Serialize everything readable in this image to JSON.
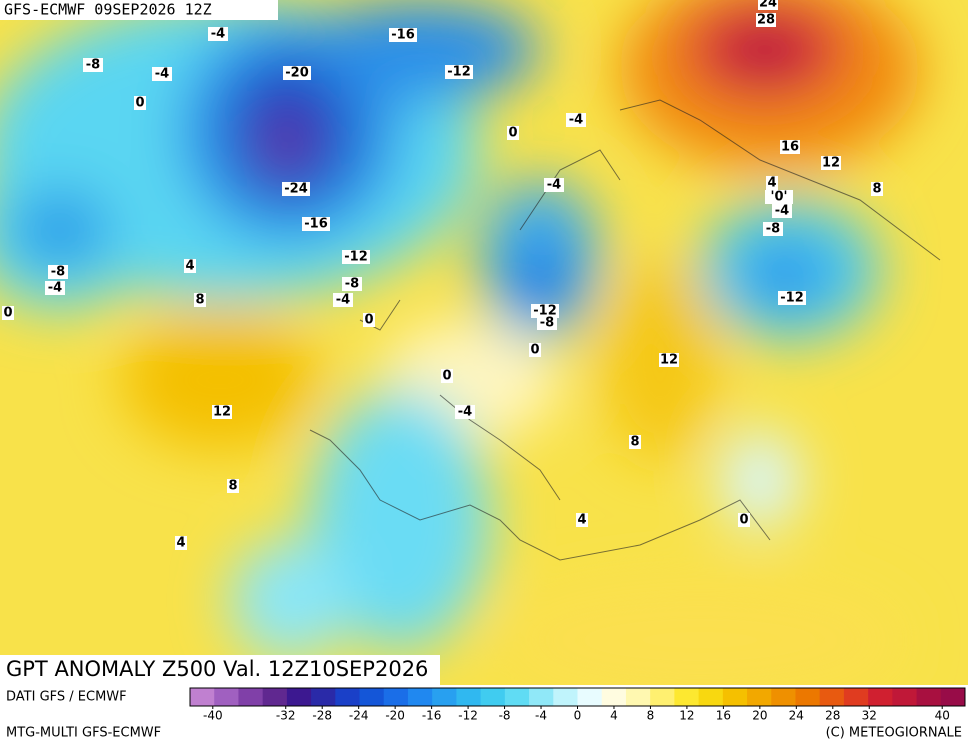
{
  "header": {
    "run": "GFS-ECMWF 09SEP2026 12Z"
  },
  "map": {
    "title": "GPT ANOMALY Z500 Val. 12Z10SEP2026",
    "contour_labels": [
      24,
      28,
      -4,
      -16,
      -8,
      -4,
      -20,
      -12,
      0,
      -4,
      0,
      16,
      12,
      -24,
      -4,
      4,
      8,
      "'0'",
      -4,
      -16,
      -8,
      -12,
      4,
      -8,
      -4,
      -8,
      -4,
      -12,
      8,
      0,
      0,
      -12,
      -8,
      0,
      12,
      0,
      -4,
      12,
      8,
      8,
      4,
      0,
      4
    ]
  },
  "footer": {
    "source": "DATI GFS / ECMWF",
    "model": "MTG-MULTI GFS-ECMWF",
    "copyright": "(C) METEOGIORNALE"
  },
  "colorbar": {
    "lim": [
      -42.5,
      42.5
    ],
    "ticks": [
      -40,
      -32,
      -28,
      -24,
      -20,
      -16,
      -12,
      -8,
      -4,
      0,
      4,
      8,
      12,
      16,
      20,
      24,
      28,
      32,
      40
    ],
    "colors": [
      "#c080d0",
      "#a060c0",
      "#8040a8",
      "#602890",
      "#3c1890",
      "#2a2aa8",
      "#1a40c8",
      "#1456d8",
      "#1a6ee8",
      "#2088f0",
      "#28a0f0",
      "#30b8f0",
      "#40ccf0",
      "#60dcf4",
      "#90e8f8",
      "#c0f4fc",
      "#e8fcff",
      "#fffce0",
      "#fff8b0",
      "#fff070",
      "#fde830",
      "#f8d810",
      "#f5c000",
      "#f2a800",
      "#ef9000",
      "#ec7800",
      "#e85a10",
      "#e03c20",
      "#d02030",
      "#c01838",
      "#a81040",
      "#980c48"
    ]
  }
}
